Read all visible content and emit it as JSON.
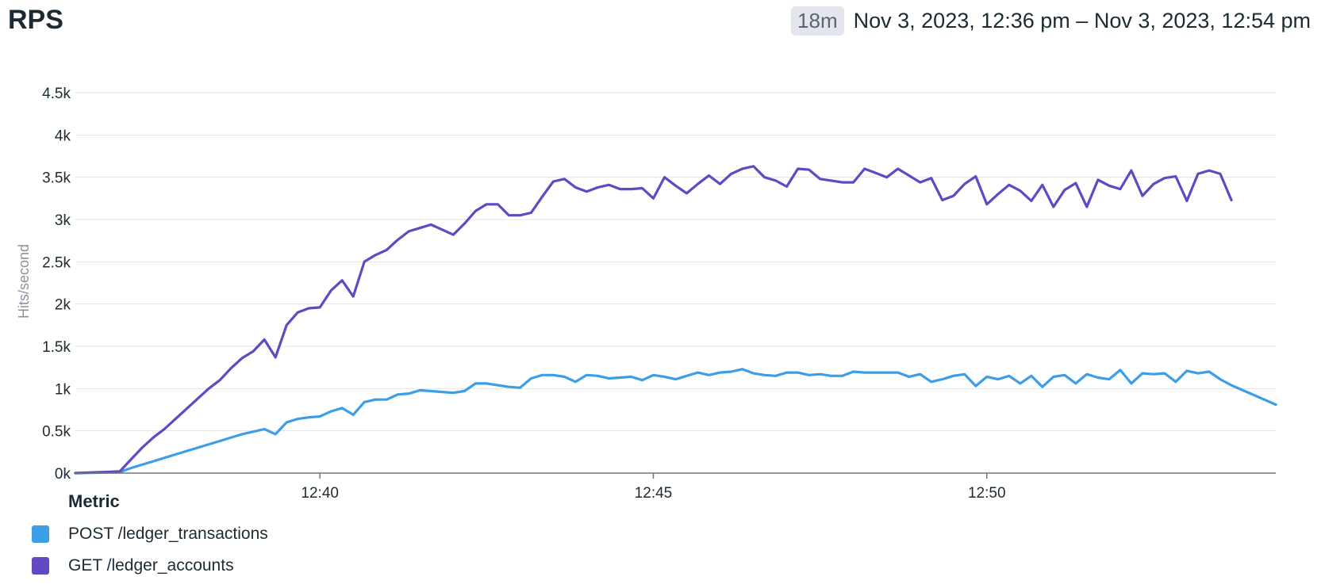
{
  "header": {
    "title": "RPS",
    "duration_badge": "18m",
    "time_range": "Nov 3, 2023, 12:36 pm – Nov 3, 2023, 12:54 pm"
  },
  "legend": {
    "title": "Metric"
  },
  "chart_data": {
    "type": "line",
    "ylabel": "Hits/second",
    "ylim": [
      0,
      4500
    ],
    "xlim": [
      "12:36:20",
      "12:54:20"
    ],
    "y_ticks": [
      "0k",
      "0.5k",
      "1k",
      "1.5k",
      "2k",
      "2.5k",
      "3k",
      "3.5k",
      "4k",
      "4.5k"
    ],
    "x_ticks": [
      "12:40",
      "12:45",
      "12:50"
    ],
    "grid": true,
    "legend_placement": "bottom-left",
    "series": [
      {
        "name": "POST /ledger_transactions",
        "color": "#3d9ee8",
        "x": [
          "12:36:20",
          "12:37:00",
          "12:37:10",
          "12:37:30",
          "12:37:50",
          "12:38:10",
          "12:38:30",
          "12:38:50",
          "12:39:10",
          "12:39:20",
          "12:39:30",
          "12:39:40",
          "12:39:50",
          "12:40:00",
          "12:40:10",
          "12:40:20",
          "12:40:30",
          "12:40:40",
          "12:40:50",
          "12:41:00",
          "12:41:10",
          "12:41:20",
          "12:41:30",
          "12:41:40",
          "12:41:50",
          "12:42:00",
          "12:42:10",
          "12:42:20",
          "12:42:30",
          "12:42:40",
          "12:42:50",
          "12:43:00",
          "12:43:10",
          "12:43:20",
          "12:43:30",
          "12:43:40",
          "12:43:50",
          "12:44:00",
          "12:44:10",
          "12:44:20",
          "12:44:30",
          "12:44:40",
          "12:44:50",
          "12:45:00",
          "12:45:10",
          "12:45:20",
          "12:45:30",
          "12:45:40",
          "12:45:50",
          "12:46:00",
          "12:46:10",
          "12:46:20",
          "12:46:30",
          "12:46:40",
          "12:46:50",
          "12:47:00",
          "12:47:10",
          "12:47:20",
          "12:47:30",
          "12:47:40",
          "12:47:50",
          "12:48:00",
          "12:48:10",
          "12:48:20",
          "12:48:30",
          "12:48:40",
          "12:48:50",
          "12:49:00",
          "12:49:10",
          "12:49:20",
          "12:49:30",
          "12:49:40",
          "12:49:50",
          "12:50:00",
          "12:50:10",
          "12:50:20",
          "12:50:30",
          "12:50:40",
          "12:50:50",
          "12:51:00",
          "12:51:10",
          "12:51:20",
          "12:51:30",
          "12:51:40",
          "12:51:50",
          "12:52:00",
          "12:52:10",
          "12:52:20",
          "12:52:30",
          "12:52:40",
          "12:52:50",
          "12:53:00",
          "12:53:10",
          "12:53:20",
          "12:53:30",
          "12:53:40",
          "12:54:20"
        ],
        "y": [
          0,
          10,
          60,
          140,
          220,
          300,
          380,
          460,
          520,
          460,
          600,
          640,
          660,
          670,
          730,
          770,
          690,
          840,
          870,
          870,
          930,
          940,
          980,
          970,
          960,
          950,
          970,
          1060,
          1060,
          1040,
          1020,
          1010,
          1120,
          1160,
          1160,
          1140,
          1080,
          1160,
          1150,
          1120,
          1130,
          1140,
          1100,
          1160,
          1140,
          1110,
          1150,
          1190,
          1160,
          1190,
          1200,
          1230,
          1180,
          1160,
          1150,
          1190,
          1190,
          1160,
          1170,
          1150,
          1150,
          1200,
          1190,
          1190,
          1190,
          1190,
          1140,
          1170,
          1080,
          1110,
          1150,
          1170,
          1030,
          1140,
          1110,
          1150,
          1060,
          1150,
          1020,
          1140,
          1160,
          1060,
          1170,
          1130,
          1110,
          1220,
          1060,
          1180,
          1170,
          1180,
          1080,
          1210,
          1180,
          1200,
          1110,
          1040,
          810
        ]
      },
      {
        "name": "GET /ledger_accounts",
        "color": "#6248c3",
        "x": [
          "12:36:20",
          "12:37:00",
          "12:37:10",
          "12:37:20",
          "12:37:30",
          "12:37:40",
          "12:37:50",
          "12:38:00",
          "12:38:10",
          "12:38:20",
          "12:38:30",
          "12:38:40",
          "12:38:50",
          "12:39:00",
          "12:39:10",
          "12:39:20",
          "12:39:30",
          "12:39:40",
          "12:39:50",
          "12:40:00",
          "12:40:10",
          "12:40:20",
          "12:40:30",
          "12:40:40",
          "12:40:50",
          "12:41:00",
          "12:41:10",
          "12:41:20",
          "12:41:30",
          "12:41:40",
          "12:41:50",
          "12:42:00",
          "12:42:10",
          "12:42:20",
          "12:42:30",
          "12:42:40",
          "12:42:50",
          "12:43:00",
          "12:43:10",
          "12:43:20",
          "12:43:30",
          "12:43:40",
          "12:43:50",
          "12:44:00",
          "12:44:10",
          "12:44:20",
          "12:44:30",
          "12:44:40",
          "12:44:50",
          "12:45:00",
          "12:45:10",
          "12:45:20",
          "12:45:30",
          "12:45:40",
          "12:45:50",
          "12:46:00",
          "12:46:10",
          "12:46:20",
          "12:46:30",
          "12:46:40",
          "12:46:50",
          "12:47:00",
          "12:47:10",
          "12:47:20",
          "12:47:30",
          "12:47:40",
          "12:47:50",
          "12:48:00",
          "12:48:10",
          "12:48:20",
          "12:48:30",
          "12:48:40",
          "12:48:50",
          "12:49:00",
          "12:49:10",
          "12:49:20",
          "12:49:30",
          "12:49:40",
          "12:49:50",
          "12:50:00",
          "12:50:10",
          "12:50:20",
          "12:50:30",
          "12:50:40",
          "12:50:50",
          "12:51:00",
          "12:51:10",
          "12:51:20",
          "12:51:30",
          "12:51:40",
          "12:51:50",
          "12:52:00",
          "12:52:10",
          "12:52:20",
          "12:52:30",
          "12:52:40",
          "12:52:50",
          "12:53:00",
          "12:53:10",
          "12:53:20",
          "12:53:30",
          "12:53:40"
        ],
        "y": [
          0,
          20,
          160,
          300,
          420,
          520,
          640,
          760,
          880,
          1000,
          1100,
          1240,
          1360,
          1440,
          1580,
          1370,
          1750,
          1900,
          1950,
          1960,
          2160,
          2280,
          2090,
          2500,
          2580,
          2640,
          2760,
          2860,
          2900,
          2940,
          2880,
          2820,
          2950,
          3100,
          3180,
          3180,
          3050,
          3050,
          3080,
          3270,
          3450,
          3480,
          3380,
          3330,
          3380,
          3410,
          3360,
          3360,
          3370,
          3250,
          3500,
          3400,
          3310,
          3420,
          3520,
          3420,
          3540,
          3600,
          3630,
          3500,
          3460,
          3390,
          3600,
          3590,
          3480,
          3460,
          3440,
          3440,
          3600,
          3550,
          3500,
          3600,
          3520,
          3440,
          3490,
          3230,
          3280,
          3420,
          3510,
          3180,
          3300,
          3410,
          3340,
          3220,
          3410,
          3150,
          3350,
          3430,
          3150,
          3470,
          3400,
          3360,
          3580,
          3280,
          3420,
          3490,
          3510,
          3220,
          3540,
          3580,
          3540,
          3230
        ]
      }
    ]
  }
}
